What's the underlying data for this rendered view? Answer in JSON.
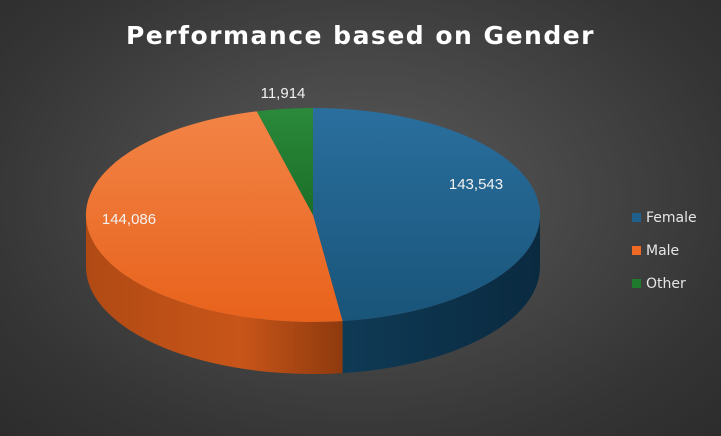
{
  "chart_data": {
    "type": "pie",
    "title": "Performance based on Gender",
    "categories": [
      "Female",
      "Male",
      "Other"
    ],
    "values": [
      143543,
      144086,
      11914
    ],
    "data_labels": [
      "143,543",
      "144,086",
      "11,914"
    ],
    "colors": [
      "#1f5f8c",
      "#ee6a24",
      "#1f7a2e"
    ],
    "legend_position": "right",
    "style": "3d-pie"
  },
  "legend": {
    "items": [
      {
        "label": "Female",
        "color": "#1f5f8c"
      },
      {
        "label": "Male",
        "color": "#ee6a24"
      },
      {
        "label": "Other",
        "color": "#1f7a2e"
      }
    ]
  }
}
